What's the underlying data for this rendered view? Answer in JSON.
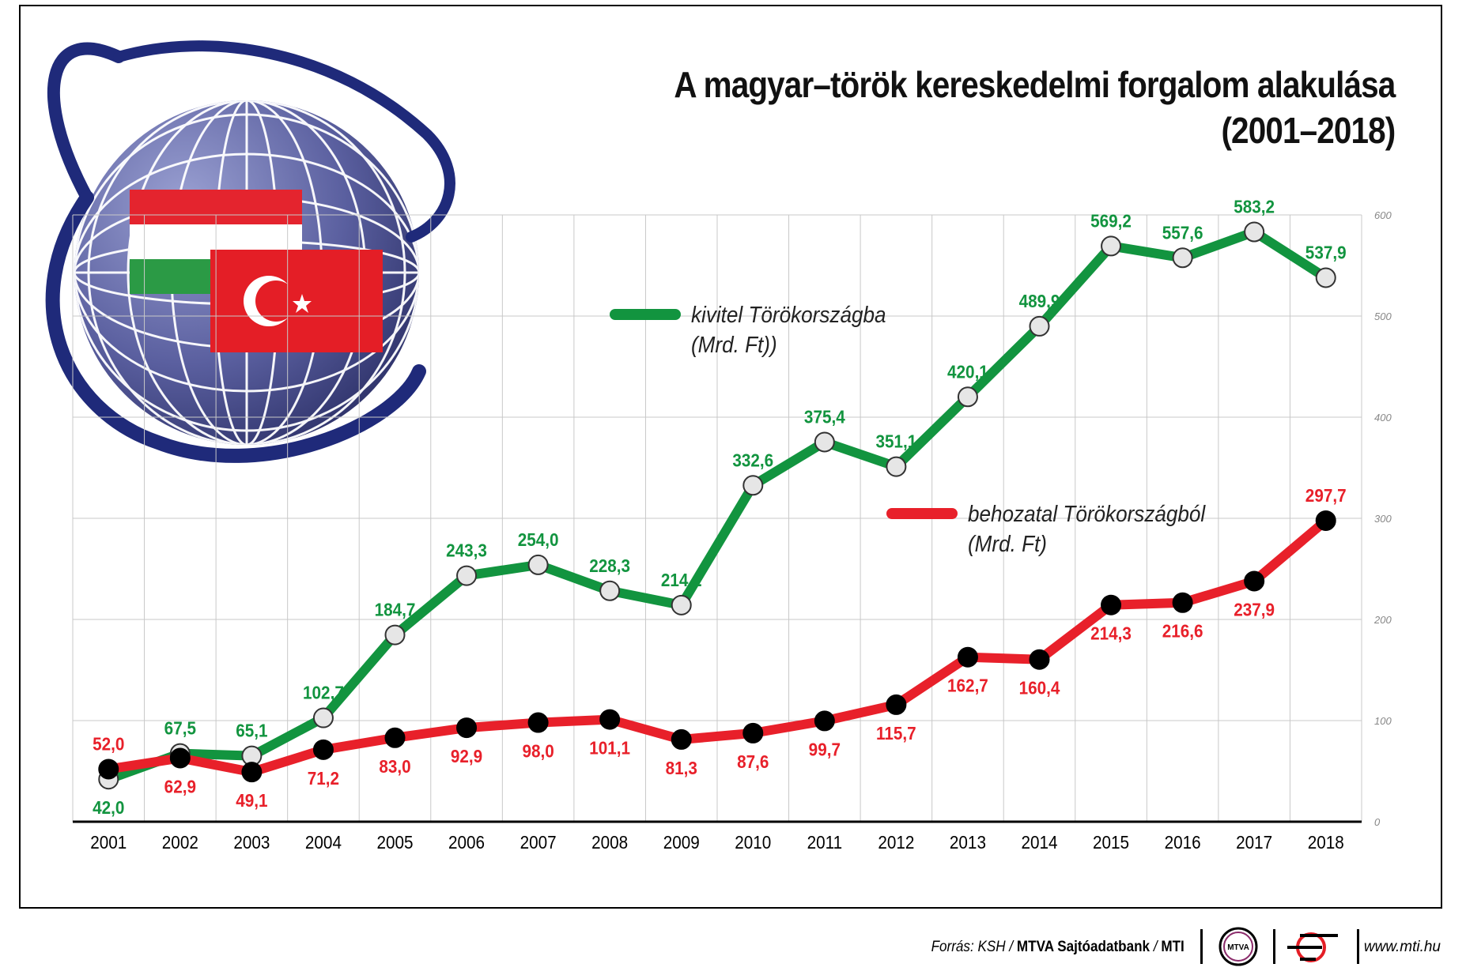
{
  "title_line1": "A magyar–török kereskedelmi forgalom alakulása",
  "title_line2": "(2001–2018)",
  "footer": {
    "source_prefix": "Forrás: KSH / ",
    "source_bold": "MTVA Sajtóadatbank",
    "source_sep": " / ",
    "source_mti": "MTI",
    "mtva_logo_text": "MTVA",
    "url": "www.mti.hu"
  },
  "colors": {
    "export": "#12943f",
    "import": "#e8202a",
    "globe": "#4a4f8f",
    "ring": "#1f2a7a",
    "hu_red": "#e4242e",
    "hu_white": "#ffffff",
    "hu_green": "#2b9a45",
    "tr_red": "#e41e26"
  },
  "icons": [
    "globe-icon",
    "hungarian-flag-icon",
    "turkish-flag-icon",
    "mtva-logo",
    "mti-logo"
  ],
  "chart_data": {
    "type": "line",
    "title": "A magyar–török kereskedelmi forgalom alakulása (2001–2018)",
    "categories": [
      "2001",
      "2002",
      "2003",
      "2004",
      "2005",
      "2006",
      "2007",
      "2008",
      "2009",
      "2010",
      "2011",
      "2012",
      "2013",
      "2014",
      "2015",
      "2016",
      "2017",
      "2018"
    ],
    "ylim": [
      0,
      600
    ],
    "yticks": [
      "0",
      "100",
      "200",
      "300",
      "400",
      "500",
      "600"
    ],
    "ytick_values": [
      0,
      100,
      200,
      300,
      400,
      500,
      600
    ],
    "y_axis_position": "right",
    "grid": true,
    "series": [
      {
        "name": "kivitel Törökországba",
        "name_line2": "(Mrd. Ft))",
        "key": "export",
        "values": [
          42.0,
          67.5,
          65.1,
          102.7,
          184.7,
          243.3,
          254.0,
          228.3,
          214.2,
          332.6,
          375.4,
          351.1,
          420.1,
          489.9,
          569.2,
          557.6,
          583.2,
          537.9
        ],
        "labels": [
          "42,0",
          "67,5",
          "65,1",
          "102,7",
          "184,7",
          "243,3",
          "254,0",
          "228,3",
          "214,2",
          "332,6",
          "375,4",
          "351,1",
          "420,1",
          "489,9",
          "569,2",
          "557,6",
          "583,2",
          "537,9"
        ]
      },
      {
        "name": "behozatal Törökországból",
        "name_line2": "(Mrd. Ft)",
        "key": "import",
        "values": [
          52.0,
          62.9,
          49.1,
          71.2,
          83.0,
          92.9,
          98.0,
          101.1,
          81.3,
          87.6,
          99.7,
          115.7,
          162.7,
          160.4,
          214.3,
          216.6,
          237.9,
          297.7
        ],
        "labels": [
          "52,0",
          "62,9",
          "49,1",
          "71,2",
          "83,0",
          "92,9",
          "98,0",
          "101,1",
          "81,3",
          "87,6",
          "99,7",
          "115,7",
          "162,7",
          "160,4",
          "214,3",
          "216,6",
          "237,9",
          "297,7"
        ]
      }
    ]
  }
}
